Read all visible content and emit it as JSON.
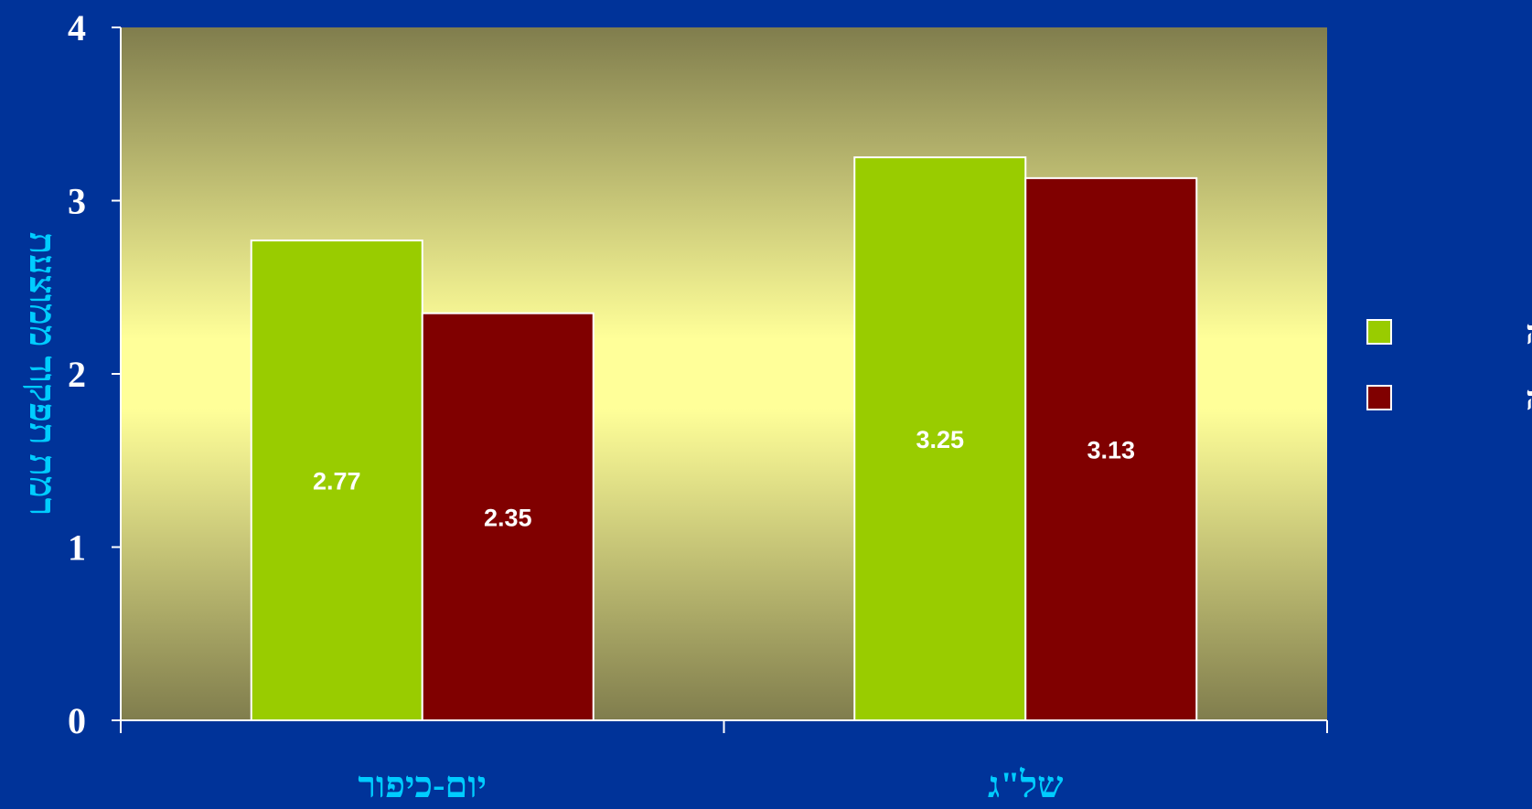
{
  "chart_data": {
    "type": "bar",
    "categories": [
      "יום-כיפור",
      "של\"ג"
    ],
    "series": [
      {
        "name": "ראשונה",
        "values": [
          2.77,
          3.25
        ]
      },
      {
        "name": "אחרונה",
        "values": [
          2.35,
          3.13
        ]
      }
    ],
    "data_labels": [
      [
        "2.77",
        "3.25"
      ],
      [
        "2.35",
        "3.13"
      ]
    ],
    "ylabel": "רמת תפקוד ממוצעת",
    "xlabel": "",
    "ylim": [
      0,
      4
    ],
    "yticks": [
      "0",
      "1",
      "2",
      "3",
      "4"
    ],
    "grid": false,
    "legend_position": "right",
    "colors": {
      "background": "#003399",
      "plot_edge": "#807d4d",
      "plot_center": "#ffff99",
      "series": [
        "#99cc00",
        "#800000"
      ],
      "axis": "#ffffff",
      "category_text": "#00ccff",
      "ylabel_text": "#00ccff"
    }
  }
}
